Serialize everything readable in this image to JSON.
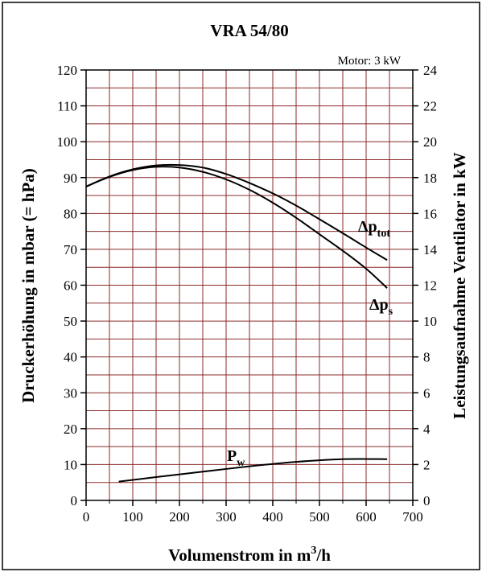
{
  "chart_data": {
    "type": "line",
    "title": "VRA 54/80",
    "annotation": "Motor: 3 kW",
    "xlabel": {
      "main": "Volumenstrom in m",
      "sup": "3",
      "suffix": "/h"
    },
    "ylabel_left": "Druckerhöhung in mbar (= hPa)",
    "ylabel_right": "Leistungsaufnahme Ventilator in kW",
    "xlim": [
      0,
      700
    ],
    "ylim_left": [
      0,
      120
    ],
    "ylim_right": [
      0,
      24
    ],
    "xticks": [
      "0",
      "100",
      "200",
      "300",
      "400",
      "500",
      "600",
      "700"
    ],
    "yticks_left": [
      "0",
      "10",
      "20",
      "30",
      "40",
      "50",
      "60",
      "70",
      "80",
      "90",
      "100",
      "110",
      "120"
    ],
    "yticks_right": [
      "0",
      "2",
      "4",
      "6",
      "8",
      "10",
      "12",
      "14",
      "16",
      "18",
      "20",
      "22",
      "24"
    ],
    "grid": true,
    "grid_color": "#8b2b2b",
    "curve_color": "#000000",
    "series": [
      {
        "name": "Δp_tot",
        "label": {
          "main": "Δp",
          "sub": "tot"
        },
        "axis": "left",
        "x": [
          0,
          50,
          100,
          150,
          200,
          250,
          300,
          350,
          400,
          450,
          500,
          550,
          600,
          645
        ],
        "y": [
          87.5,
          90.3,
          92.3,
          93.4,
          93.5,
          92.8,
          91.0,
          88.5,
          85.6,
          82.2,
          78.4,
          74.5,
          70.5,
          67.0
        ]
      },
      {
        "name": "Δp_s",
        "label": {
          "main": "Δp",
          "sub": "s"
        },
        "axis": "left",
        "x": [
          0,
          50,
          100,
          150,
          200,
          250,
          300,
          350,
          400,
          450,
          500,
          550,
          600,
          645
        ],
        "y": [
          87.5,
          90.2,
          92.1,
          93.0,
          92.8,
          91.6,
          89.5,
          86.6,
          83.0,
          78.8,
          74.2,
          69.6,
          64.6,
          59.2
        ]
      },
      {
        "name": "P_w",
        "label": {
          "main": "P",
          "sub": "w"
        },
        "axis": "right",
        "x": [
          70,
          150,
          250,
          350,
          450,
          550,
          645
        ],
        "y": [
          1.05,
          1.3,
          1.6,
          1.9,
          2.15,
          2.3,
          2.3
        ]
      }
    ]
  }
}
